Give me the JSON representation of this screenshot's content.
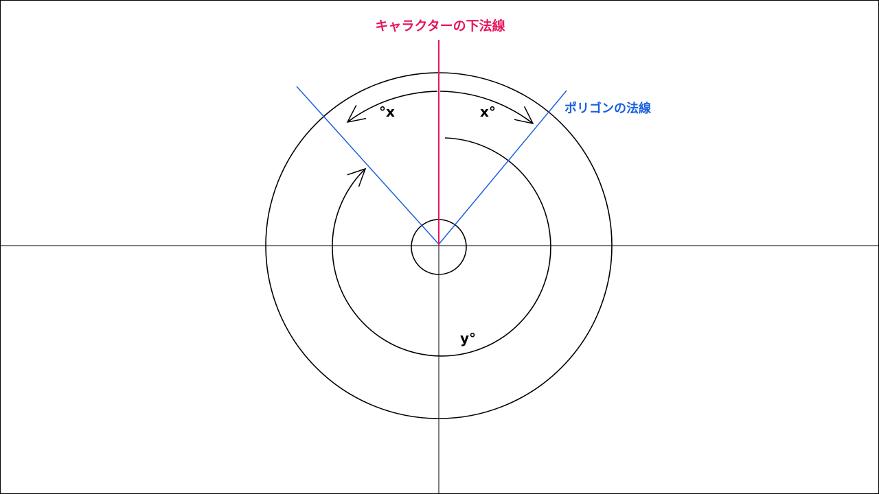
{
  "labels": {
    "character_normal": "キャラクターの下法線",
    "polygon_normal": "ポリゴンの法線",
    "angle_left": "°x",
    "angle_right": "x°",
    "angle_y": "y°"
  },
  "colors": {
    "character_normal": "#e8155f",
    "polygon_normal": "#1a5fe0",
    "lines": "#000000",
    "background": "#ffffff"
  }
}
